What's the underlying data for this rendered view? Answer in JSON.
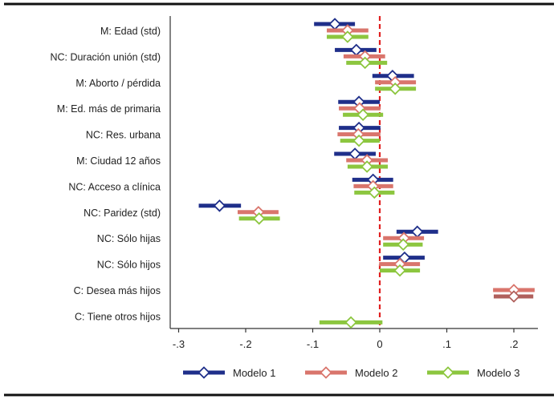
{
  "chart_data": {
    "type": "scatter",
    "subtype": "coefficient-plot",
    "title": "",
    "xlabel": "",
    "ylabel": "",
    "xlim": [
      -0.3,
      0.23
    ],
    "xticks": [
      -0.3,
      -0.2,
      -0.1,
      0,
      0.1,
      0.2
    ],
    "xtick_labels": [
      "-.3",
      "-.2",
      "-.1",
      "0",
      ".1",
      ".2"
    ],
    "reference_line": {
      "x": 0,
      "color": "#e02020",
      "style": "dashed"
    },
    "categories": [
      "M: Edad (std)",
      "NC: Duración unión (std)",
      "M: Aborto / pérdida",
      "M: Ed. más de primaria",
      "NC: Res. urbana",
      "M: Ciudad 12 años",
      "NC: Acceso a clínica",
      "NC: Paridez (std)",
      "NC: Sólo hijas",
      "NC: Sólo hijos",
      "C: Desea más hijos",
      "C: Tiene otros hijos"
    ],
    "series": [
      {
        "name": "Modelo 1",
        "color": "#1f2f8a",
        "estimates": [
          -0.067,
          -0.035,
          0.019,
          -0.031,
          -0.031,
          -0.037,
          -0.01,
          -0.239,
          0.056,
          0.037,
          null,
          null
        ],
        "ci_low": [
          -0.098,
          -0.067,
          -0.011,
          -0.062,
          -0.061,
          -0.068,
          -0.041,
          -0.27,
          0.025,
          0.005,
          null,
          null
        ],
        "ci_high": [
          -0.037,
          -0.005,
          0.051,
          0.0,
          0.001,
          -0.006,
          0.02,
          -0.207,
          0.087,
          0.067,
          null,
          null
        ]
      },
      {
        "name": "Modelo 2",
        "color": "#d9756c",
        "estimates": [
          -0.048,
          -0.022,
          0.023,
          -0.03,
          -0.032,
          -0.019,
          -0.01,
          -0.181,
          0.036,
          0.03,
          0.2,
          null
        ],
        "ci_low": [
          -0.079,
          -0.054,
          -0.007,
          -0.061,
          -0.063,
          -0.05,
          -0.039,
          -0.212,
          0.005,
          -0.001,
          0.169,
          null
        ],
        "ci_high": [
          -0.017,
          0.008,
          0.054,
          0.001,
          0.001,
          0.012,
          0.02,
          -0.151,
          0.066,
          0.06,
          0.231,
          null
        ]
      },
      {
        "name": "Modelo 3",
        "color": "#8cc63f",
        "estimates": [
          -0.048,
          -0.022,
          0.023,
          -0.025,
          -0.031,
          -0.019,
          -0.008,
          -0.18,
          0.035,
          0.03,
          0.2,
          -0.043
        ],
        "ci_low": [
          -0.079,
          -0.05,
          -0.007,
          -0.055,
          -0.059,
          -0.048,
          -0.038,
          -0.21,
          0.005,
          0.0,
          0.17,
          -0.09
        ],
        "ci_high": [
          -0.017,
          0.011,
          0.054,
          0.005,
          0.0,
          0.012,
          0.022,
          -0.149,
          0.064,
          0.06,
          0.229,
          0.004
        ],
        "point_colors": {
          "10": "#b0605c"
        }
      }
    ],
    "legend": {
      "placement": "bottom",
      "entries": [
        "Modelo 1",
        "Modelo 2",
        "Modelo 3"
      ]
    },
    "grid": false
  }
}
